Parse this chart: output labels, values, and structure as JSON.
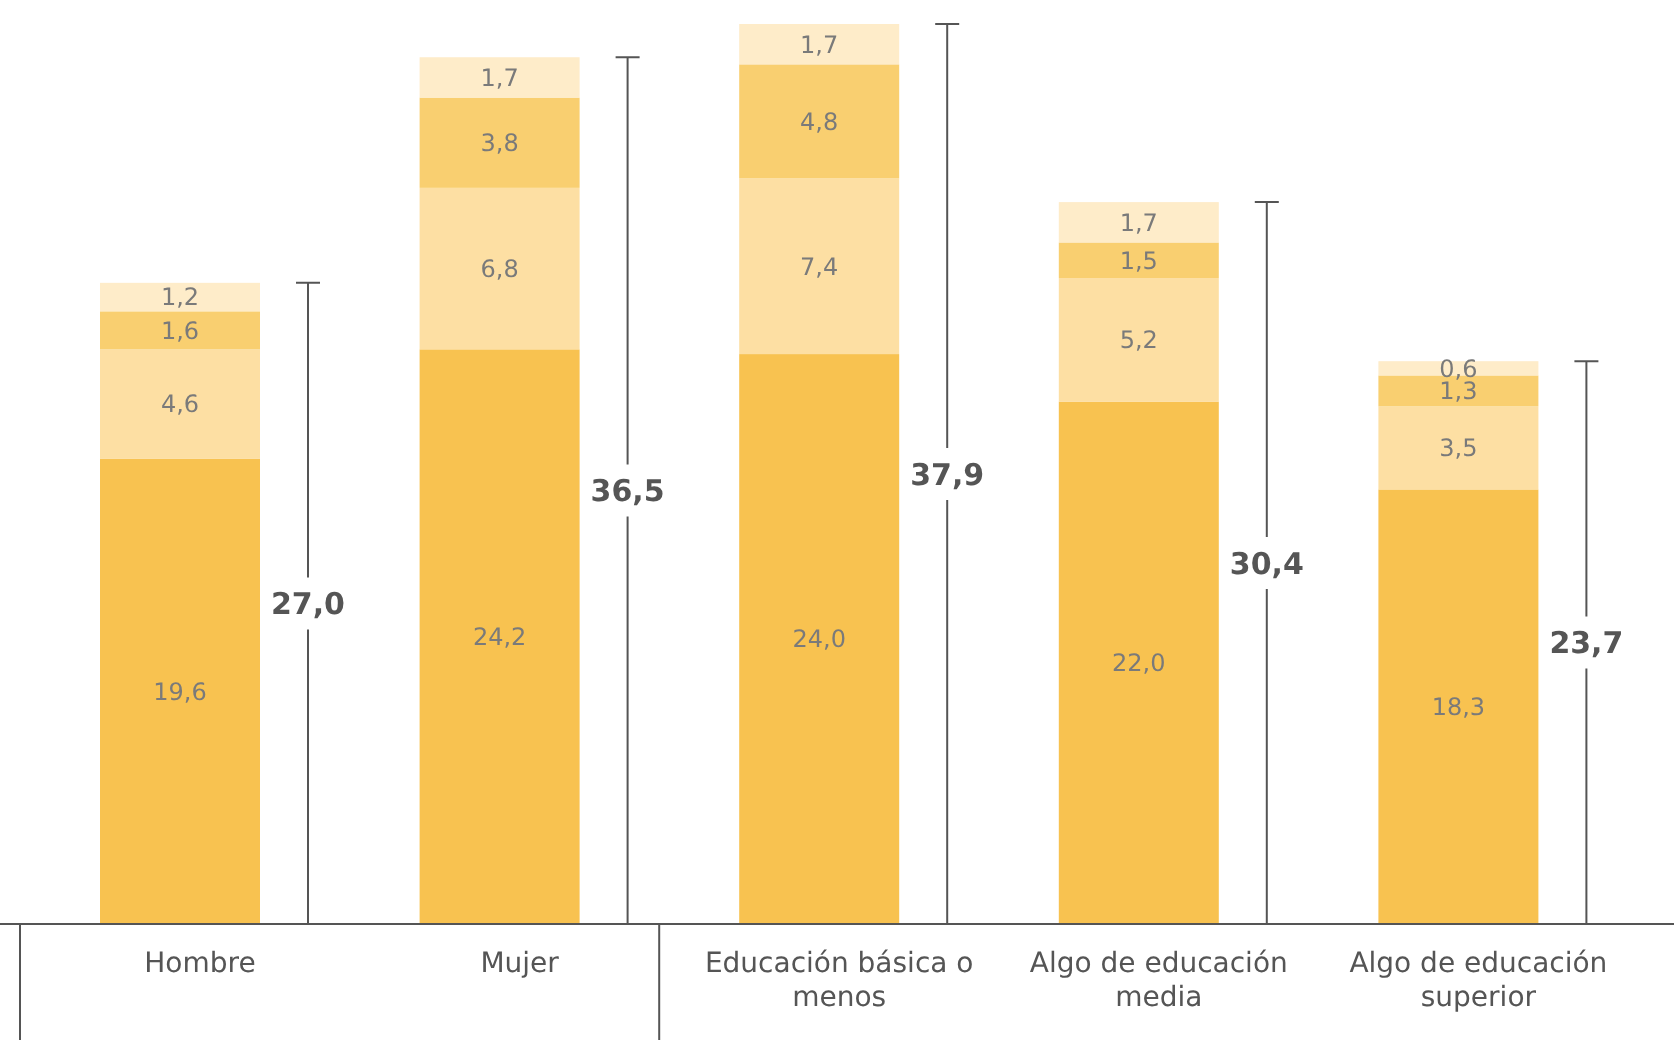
{
  "chart_data": {
    "type": "bar",
    "stacked": true,
    "categories": [
      "Hombre",
      "Mujer",
      "Educación básica o menos",
      "Algo de educación media",
      "Algo de educación superior"
    ],
    "series": [
      {
        "color": "#f8c250",
        "values": [
          19.6,
          24.2,
          24.0,
          22.0,
          18.3
        ],
        "value_labels": [
          "19,6",
          "24,2",
          "24,0",
          "22,0",
          "18,3"
        ]
      },
      {
        "color": "#fddfa3",
        "values": [
          4.6,
          6.8,
          7.4,
          5.2,
          3.5
        ],
        "value_labels": [
          "4,6",
          "6,8",
          "7,4",
          "5,2",
          "3,5"
        ]
      },
      {
        "color": "#f9cf70",
        "values": [
          1.6,
          3.8,
          4.8,
          1.5,
          1.3
        ],
        "value_labels": [
          "1,6",
          "3,8",
          "4,8",
          "1,5",
          "1,3"
        ]
      },
      {
        "color": "#feecc9",
        "values": [
          1.2,
          1.7,
          1.7,
          1.7,
          0.6
        ],
        "value_labels": [
          "1,2",
          "1,7",
          "1,7",
          "1,7",
          "0,6"
        ]
      }
    ],
    "totals": [
      "27,0",
      "36,5",
      "37,9",
      "30,4",
      "23,7"
    ]
  }
}
